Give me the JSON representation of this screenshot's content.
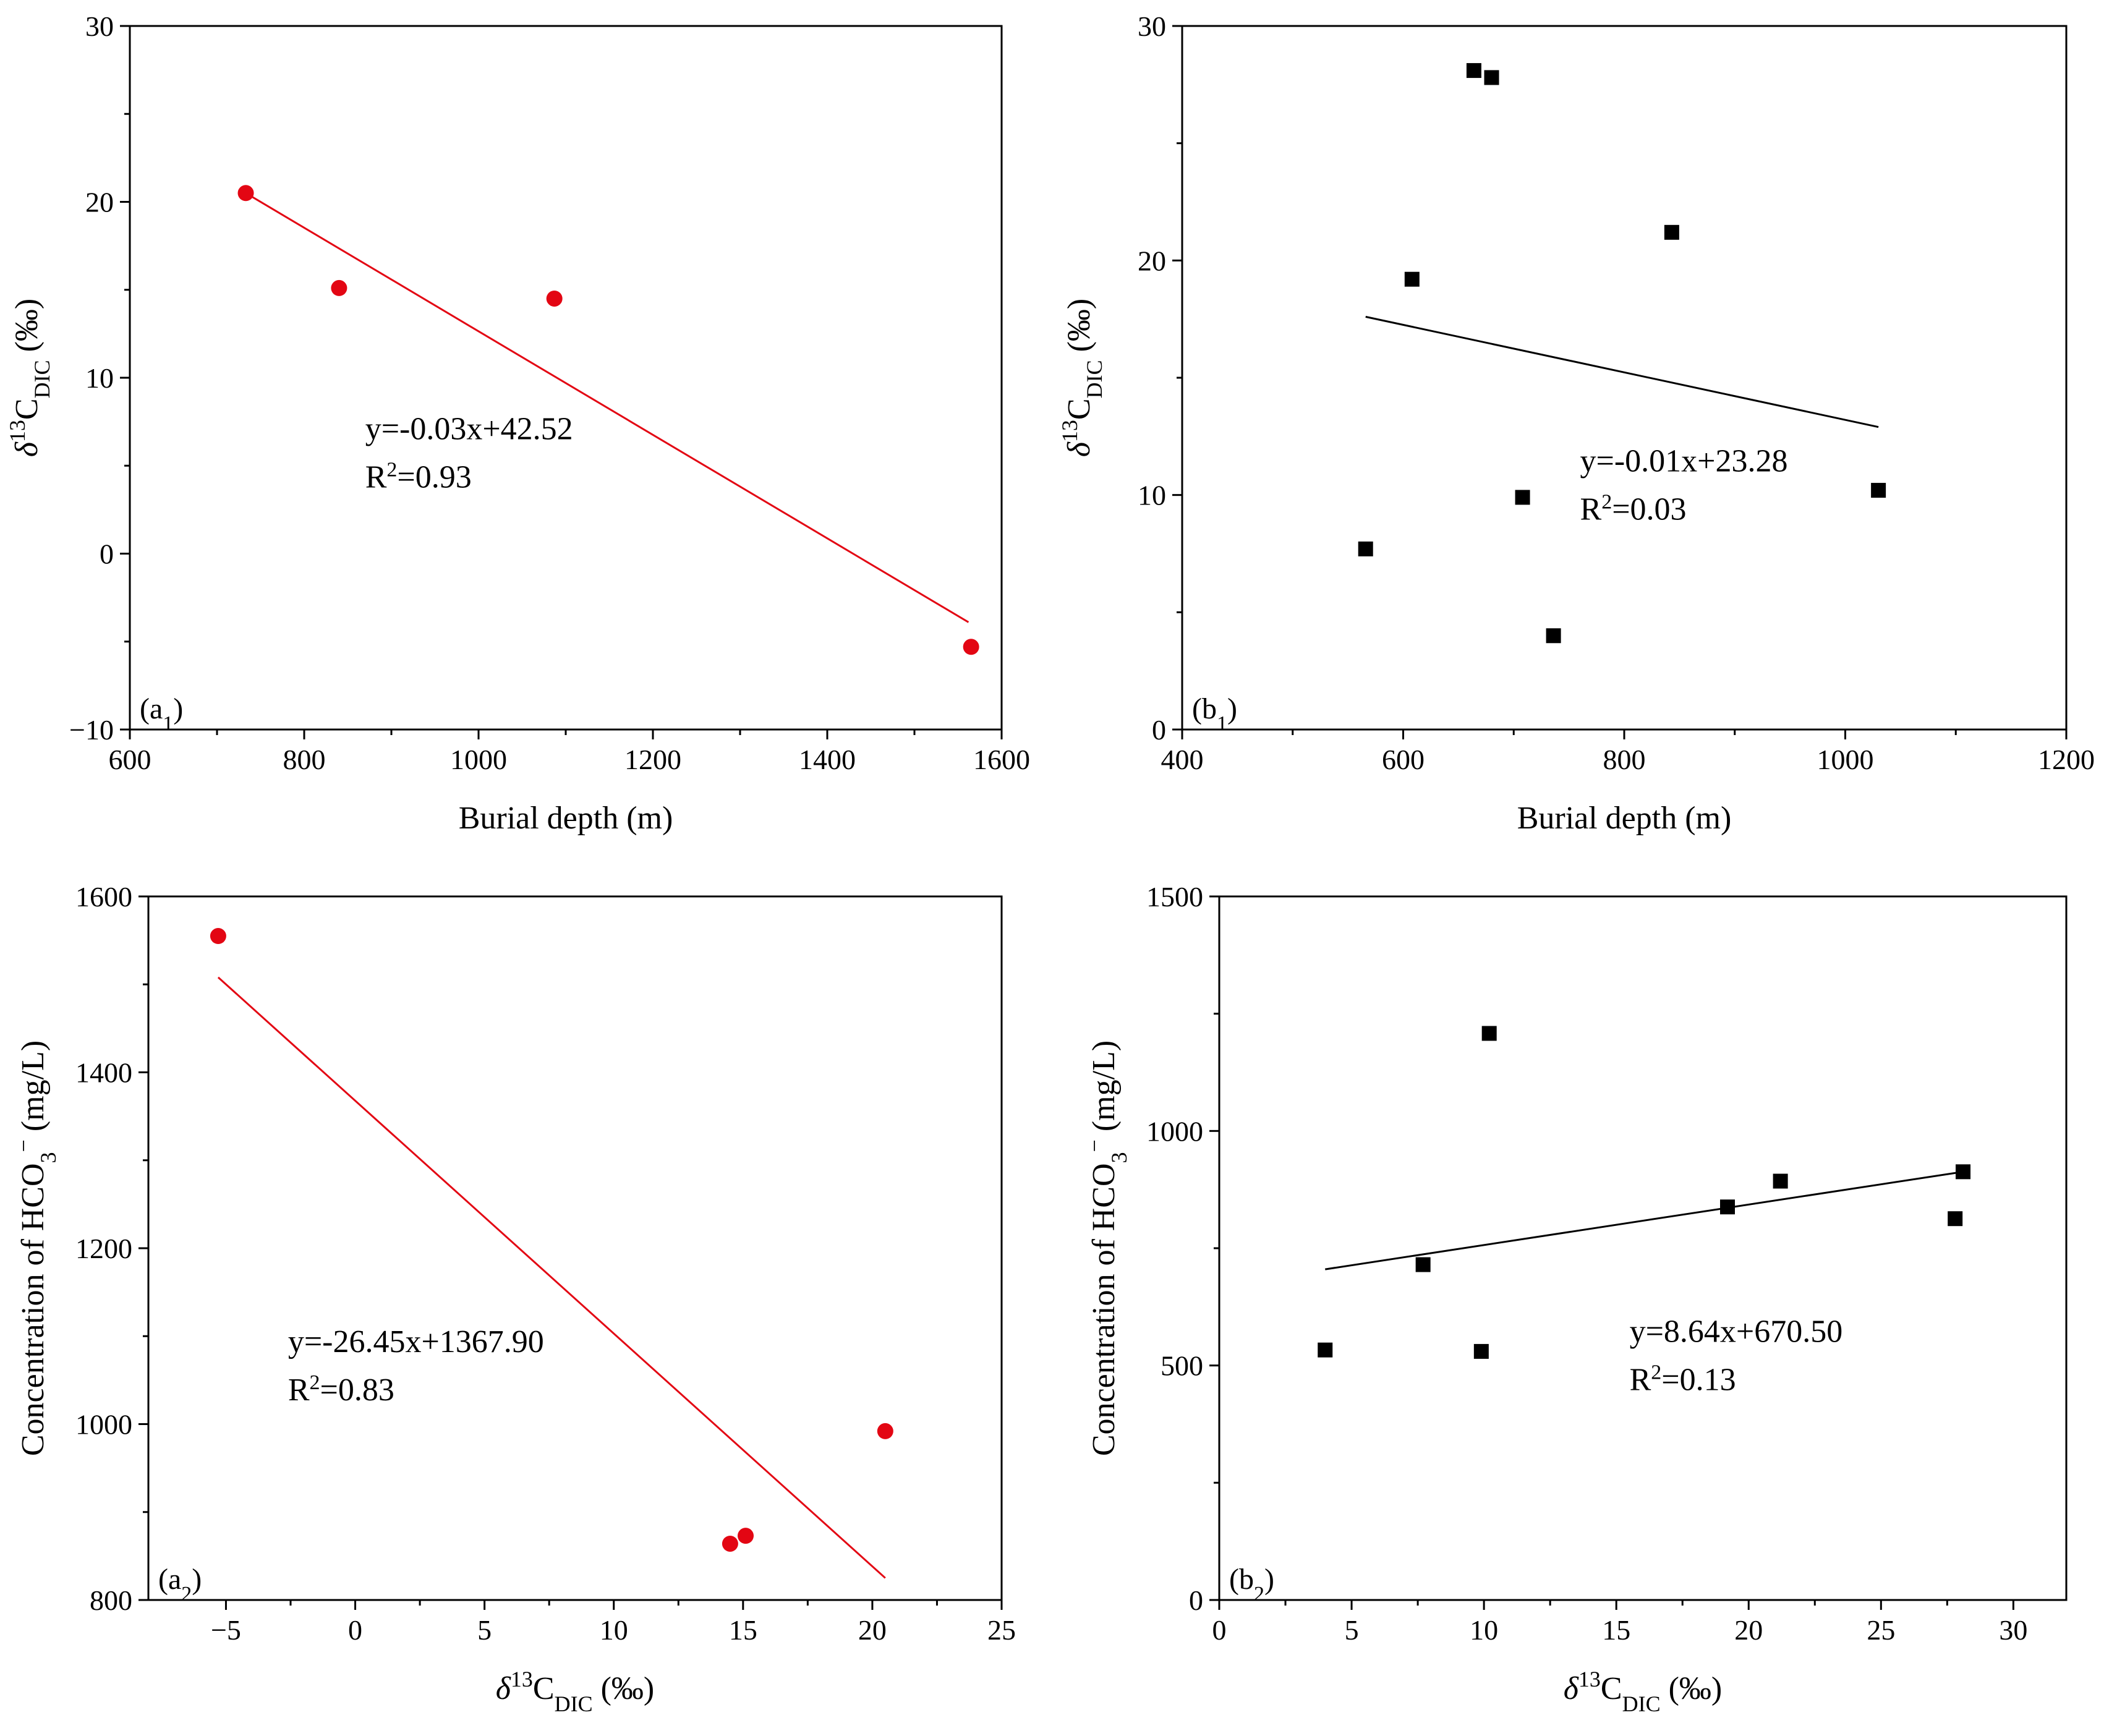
{
  "chart_data": [
    {
      "id": "a1",
      "type": "scatter",
      "panel_label": {
        "pre": "(a",
        "sub": "1",
        "post": ")"
      },
      "xlabel": "Burial depth (m)",
      "ylabel": {
        "pre": "δ",
        "sup": "13",
        "mid": "C",
        "sub": "DIC",
        "post": " (‰)"
      },
      "xlim": [
        600,
        1600
      ],
      "ylim": [
        -10,
        30
      ],
      "xticks": [
        600,
        800,
        1000,
        1200,
        1400,
        1600
      ],
      "yticks": [
        -10,
        0,
        10,
        20,
        30
      ],
      "xtick_labels": [
        "600",
        "800",
        "1000",
        "1200",
        "1400",
        "1600"
      ],
      "ytick_labels": [
        "−10",
        "0",
        "10",
        "20",
        "30"
      ],
      "marker": "circle",
      "color": "#e30613",
      "points": [
        [
          733,
          20.5
        ],
        [
          840,
          15.1
        ],
        [
          1087,
          14.5
        ],
        [
          1565,
          -5.3
        ]
      ],
      "fit_line": [
        [
          733,
          20.5
        ],
        [
          1562,
          -3.9
        ]
      ],
      "equation": "y=-0.03x+42.52",
      "r2": {
        "pre": "R",
        "sup": "2",
        "post": "=0.93"
      }
    },
    {
      "id": "b1",
      "type": "scatter",
      "panel_label": {
        "pre": "(b",
        "sub": "1",
        "post": ")"
      },
      "xlabel": "Burial depth (m)",
      "ylabel": {
        "pre": "δ",
        "sup": "13",
        "mid": "C",
        "sub": "DIC",
        "post": " (‰)"
      },
      "xlim": [
        400,
        1200
      ],
      "ylim": [
        0,
        30
      ],
      "xticks": [
        400,
        600,
        800,
        1000,
        1200
      ],
      "yticks": [
        0,
        10,
        20,
        30
      ],
      "xtick_labels": [
        "400",
        "600",
        "800",
        "1000",
        "1200"
      ],
      "ytick_labels": [
        "0",
        "10",
        "20",
        "30"
      ],
      "marker": "square",
      "color": "#000000",
      "points": [
        [
          566,
          7.7
        ],
        [
          608,
          19.2
        ],
        [
          664,
          28.1
        ],
        [
          680,
          27.8
        ],
        [
          708,
          9.9
        ],
        [
          736,
          4.0
        ],
        [
          843,
          21.2
        ],
        [
          1030,
          10.2
        ]
      ],
      "fit_line": [
        [
          566,
          17.6
        ],
        [
          1030,
          12.9
        ]
      ],
      "equation": "y=-0.01x+23.28",
      "r2": {
        "pre": "R",
        "sup": "2",
        "post": "=0.03"
      }
    },
    {
      "id": "a2",
      "type": "scatter",
      "panel_label": {
        "pre": "(a",
        "sub": "2",
        "post": ")"
      },
      "xlabel": {
        "pre": "δ",
        "sup": "13",
        "mid": "C",
        "sub": "DIC",
        "post": " (‰)"
      },
      "ylabel": {
        "pre": "Concentration of HCO",
        "sub": "3",
        "sup": "−",
        "post": " (mg/L)"
      },
      "xlim": [
        -8,
        25
      ],
      "ylim": [
        800,
        1600
      ],
      "xticks": [
        -5,
        0,
        5,
        10,
        15,
        20,
        25
      ],
      "yticks": [
        800,
        1000,
        1200,
        1400,
        1600
      ],
      "xtick_labels": [
        "−5",
        "0",
        "5",
        "10",
        "15",
        "20",
        "25"
      ],
      "ytick_labels": [
        "800",
        "1000",
        "1200",
        "1400",
        "1600"
      ],
      "marker": "circle",
      "color": "#e30613",
      "points": [
        [
          -5.3,
          1555
        ],
        [
          14.5,
          864
        ],
        [
          15.1,
          873
        ],
        [
          20.5,
          992
        ]
      ],
      "fit_line": [
        [
          -5.3,
          1508
        ],
        [
          20.5,
          825
        ]
      ],
      "equation": "y=-26.45x+1367.90",
      "r2": {
        "pre": "R",
        "sup": "2",
        "post": "=0.83"
      }
    },
    {
      "id": "b2",
      "type": "scatter",
      "panel_label": {
        "pre": "(b",
        "sub": "2",
        "post": ")"
      },
      "xlabel": {
        "pre": "δ",
        "sup": "13",
        "mid": "C",
        "sub": "DIC",
        "post": " (‰)"
      },
      "ylabel": {
        "pre": "Concentration of HCO",
        "sub": "3",
        "sup": "−",
        "post": " (mg/L)"
      },
      "xlim": [
        0,
        32
      ],
      "ylim": [
        0,
        1500
      ],
      "xticks": [
        0,
        5,
        10,
        15,
        20,
        25,
        30
      ],
      "yticks": [
        0,
        500,
        1000,
        1500
      ],
      "xtick_labels": [
        "0",
        "5",
        "10",
        "15",
        "20",
        "25",
        "30"
      ],
      "ytick_labels": [
        "0",
        "500",
        "1000",
        "1500"
      ],
      "marker": "square",
      "color": "#000000",
      "points": [
        [
          4.0,
          533
        ],
        [
          7.7,
          715
        ],
        [
          9.9,
          530
        ],
        [
          10.2,
          1208
        ],
        [
          19.2,
          838
        ],
        [
          21.2,
          893
        ],
        [
          27.8,
          813
        ],
        [
          28.1,
          913
        ]
      ],
      "fit_line": [
        [
          4.0,
          705
        ],
        [
          28.1,
          913
        ]
      ],
      "equation": "y=8.64x+670.50",
      "r2": {
        "pre": "R",
        "sup": "2",
        "post": "=0.13"
      }
    }
  ]
}
